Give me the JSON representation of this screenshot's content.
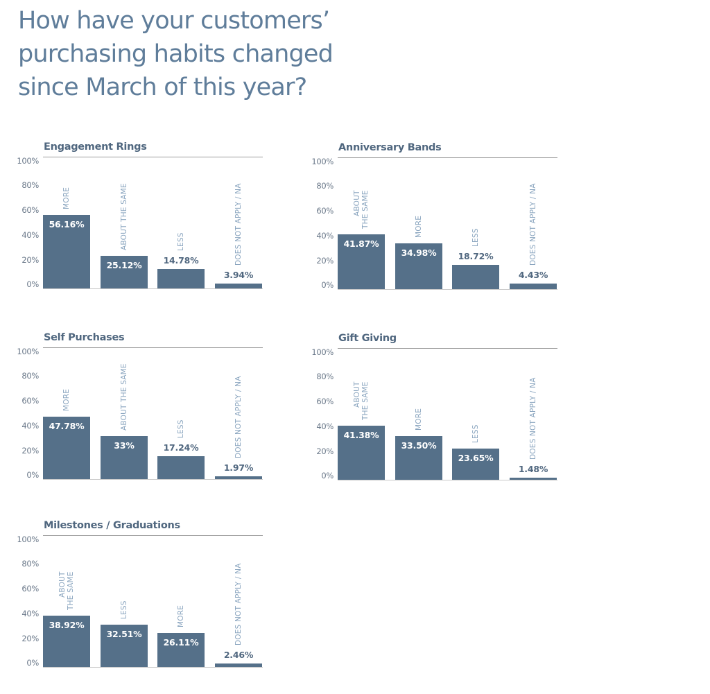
{
  "title": "How have your customers’ purchasing habits changed since March of this year?",
  "title_lines": [
    "How have your customers’",
    "purchasing habits changed",
    "since March of this year?"
  ],
  "colors": {
    "bar": "#557089",
    "title": "#5f7d9a",
    "category_label": "#8aa5bf",
    "value_outside": "#50677f",
    "value_inside": "#ffffff"
  },
  "y_ticks": [
    "100%",
    "80%",
    "60%",
    "40%",
    "20%",
    "0%"
  ],
  "chart_data": [
    {
      "type": "bar",
      "title": "Engagement Rings",
      "categories": [
        "MORE",
        "ABOUT THE SAME",
        "LESS",
        "DOES NOT APPLY / NA"
      ],
      "values": [
        56.16,
        25.12,
        14.78,
        3.94
      ],
      "labels": [
        "56.16%",
        "25.12%",
        "14.78%",
        "3.94%"
      ],
      "xlabel": "",
      "ylabel": "",
      "ylim": [
        0,
        100
      ],
      "yticks": [
        "0%",
        "20%",
        "40%",
        "60%",
        "80%",
        "100%"
      ],
      "grid": false
    },
    {
      "type": "bar",
      "title": "Anniversary Bands",
      "categories": [
        "ABOUT THE SAME",
        "MORE",
        "LESS",
        "DOES NOT APPLY / NA"
      ],
      "values": [
        41.87,
        34.98,
        18.72,
        4.43
      ],
      "labels": [
        "41.87%",
        "34.98%",
        "18.72%",
        "4.43%"
      ],
      "xlabel": "",
      "ylabel": "",
      "ylim": [
        0,
        100
      ],
      "yticks": [
        "0%",
        "20%",
        "40%",
        "60%",
        "80%",
        "100%"
      ],
      "grid": false
    },
    {
      "type": "bar",
      "title": "Self Purchases",
      "categories": [
        "MORE",
        "ABOUT THE SAME",
        "LESS",
        "DOES NOT APPLY / NA"
      ],
      "values": [
        47.78,
        33,
        17.24,
        1.97
      ],
      "labels": [
        "47.78%",
        "33%",
        "17.24%",
        "1.97%"
      ],
      "xlabel": "",
      "ylabel": "",
      "ylim": [
        0,
        100
      ],
      "yticks": [
        "0%",
        "20%",
        "40%",
        "60%",
        "80%",
        "100%"
      ],
      "grid": false
    },
    {
      "type": "bar",
      "title": "Gift Giving",
      "categories": [
        "ABOUT THE SAME",
        "MORE",
        "LESS",
        "DOES NOT APPLY / NA"
      ],
      "values": [
        41.38,
        33.5,
        23.65,
        1.48
      ],
      "labels": [
        "41.38%",
        "33.50%",
        "23.65%",
        "1.48%"
      ],
      "xlabel": "",
      "ylabel": "",
      "ylim": [
        0,
        100
      ],
      "yticks": [
        "0%",
        "20%",
        "40%",
        "60%",
        "80%",
        "100%"
      ],
      "grid": false
    },
    {
      "type": "bar",
      "title": "Milestones / Graduations",
      "categories": [
        "ABOUT THE SAME",
        "LESS",
        "MORE",
        "DOES NOT APPLY / NA"
      ],
      "values": [
        38.92,
        32.51,
        26.11,
        2.46
      ],
      "labels": [
        "38.92%",
        "32.51%",
        "26.11%",
        "2.46%"
      ],
      "xlabel": "",
      "ylabel": "",
      "ylim": [
        0,
        100
      ],
      "yticks": [
        "0%",
        "20%",
        "40%",
        "60%",
        "80%",
        "100%"
      ],
      "grid": false
    }
  ],
  "charts": [
    {
      "title": "Engagement Rings",
      "bars": [
        {
          "category": "MORE",
          "category_lines": "MORE",
          "value": 56.16,
          "label": "56.16%"
        },
        {
          "category": "ABOUT THE SAME",
          "category_lines": "ABOUT THE SAME",
          "value": 25.12,
          "label": "25.12%"
        },
        {
          "category": "LESS",
          "category_lines": "LESS",
          "value": 14.78,
          "label": "14.78%"
        },
        {
          "category": "DOES NOT APPLY / NA",
          "category_lines": "DOES NOT APPLY / NA",
          "value": 3.94,
          "label": "3.94%"
        }
      ]
    },
    {
      "title": "Anniversary Bands",
      "bars": [
        {
          "category": "ABOUT THE SAME",
          "category_lines": "ABOUT\nTHE SAME",
          "value": 41.87,
          "label": "41.87%"
        },
        {
          "category": "MORE",
          "category_lines": "MORE",
          "value": 34.98,
          "label": "34.98%"
        },
        {
          "category": "LESS",
          "category_lines": "LESS",
          "value": 18.72,
          "label": "18.72%"
        },
        {
          "category": "DOES NOT APPLY / NA",
          "category_lines": "DOES NOT APPLY / NA",
          "value": 4.43,
          "label": "4.43%"
        }
      ]
    },
    {
      "title": "Self Purchases",
      "bars": [
        {
          "category": "MORE",
          "category_lines": "MORE",
          "value": 47.78,
          "label": "47.78%"
        },
        {
          "category": "ABOUT THE SAME",
          "category_lines": "ABOUT THE SAME",
          "value": 33,
          "label": "33%"
        },
        {
          "category": "LESS",
          "category_lines": "LESS",
          "value": 17.24,
          "label": "17.24%"
        },
        {
          "category": "DOES NOT APPLY / NA",
          "category_lines": "DOES NOT APPLY / NA",
          "value": 1.97,
          "label": "1.97%"
        }
      ]
    },
    {
      "title": "Gift Giving",
      "bars": [
        {
          "category": "ABOUT THE SAME",
          "category_lines": "ABOUT\nTHE SAME",
          "value": 41.38,
          "label": "41.38%"
        },
        {
          "category": "MORE",
          "category_lines": "MORE",
          "value": 33.5,
          "label": "33.50%"
        },
        {
          "category": "LESS",
          "category_lines": "LESS",
          "value": 23.65,
          "label": "23.65%"
        },
        {
          "category": "DOES NOT APPLY / NA",
          "category_lines": "DOES NOT APPLY / NA",
          "value": 1.48,
          "label": "1.48%"
        }
      ]
    },
    {
      "title": "Milestones / Graduations",
      "bars": [
        {
          "category": "ABOUT THE SAME",
          "category_lines": "ABOUT\nTHE SAME",
          "value": 38.92,
          "label": "38.92%"
        },
        {
          "category": "LESS",
          "category_lines": "LESS",
          "value": 32.51,
          "label": "32.51%"
        },
        {
          "category": "MORE",
          "category_lines": "MORE",
          "value": 26.11,
          "label": "26.11%"
        },
        {
          "category": "DOES NOT APPLY / NA",
          "category_lines": "DOES NOT APPLY / NA",
          "value": 2.46,
          "label": "2.46%"
        }
      ]
    }
  ]
}
